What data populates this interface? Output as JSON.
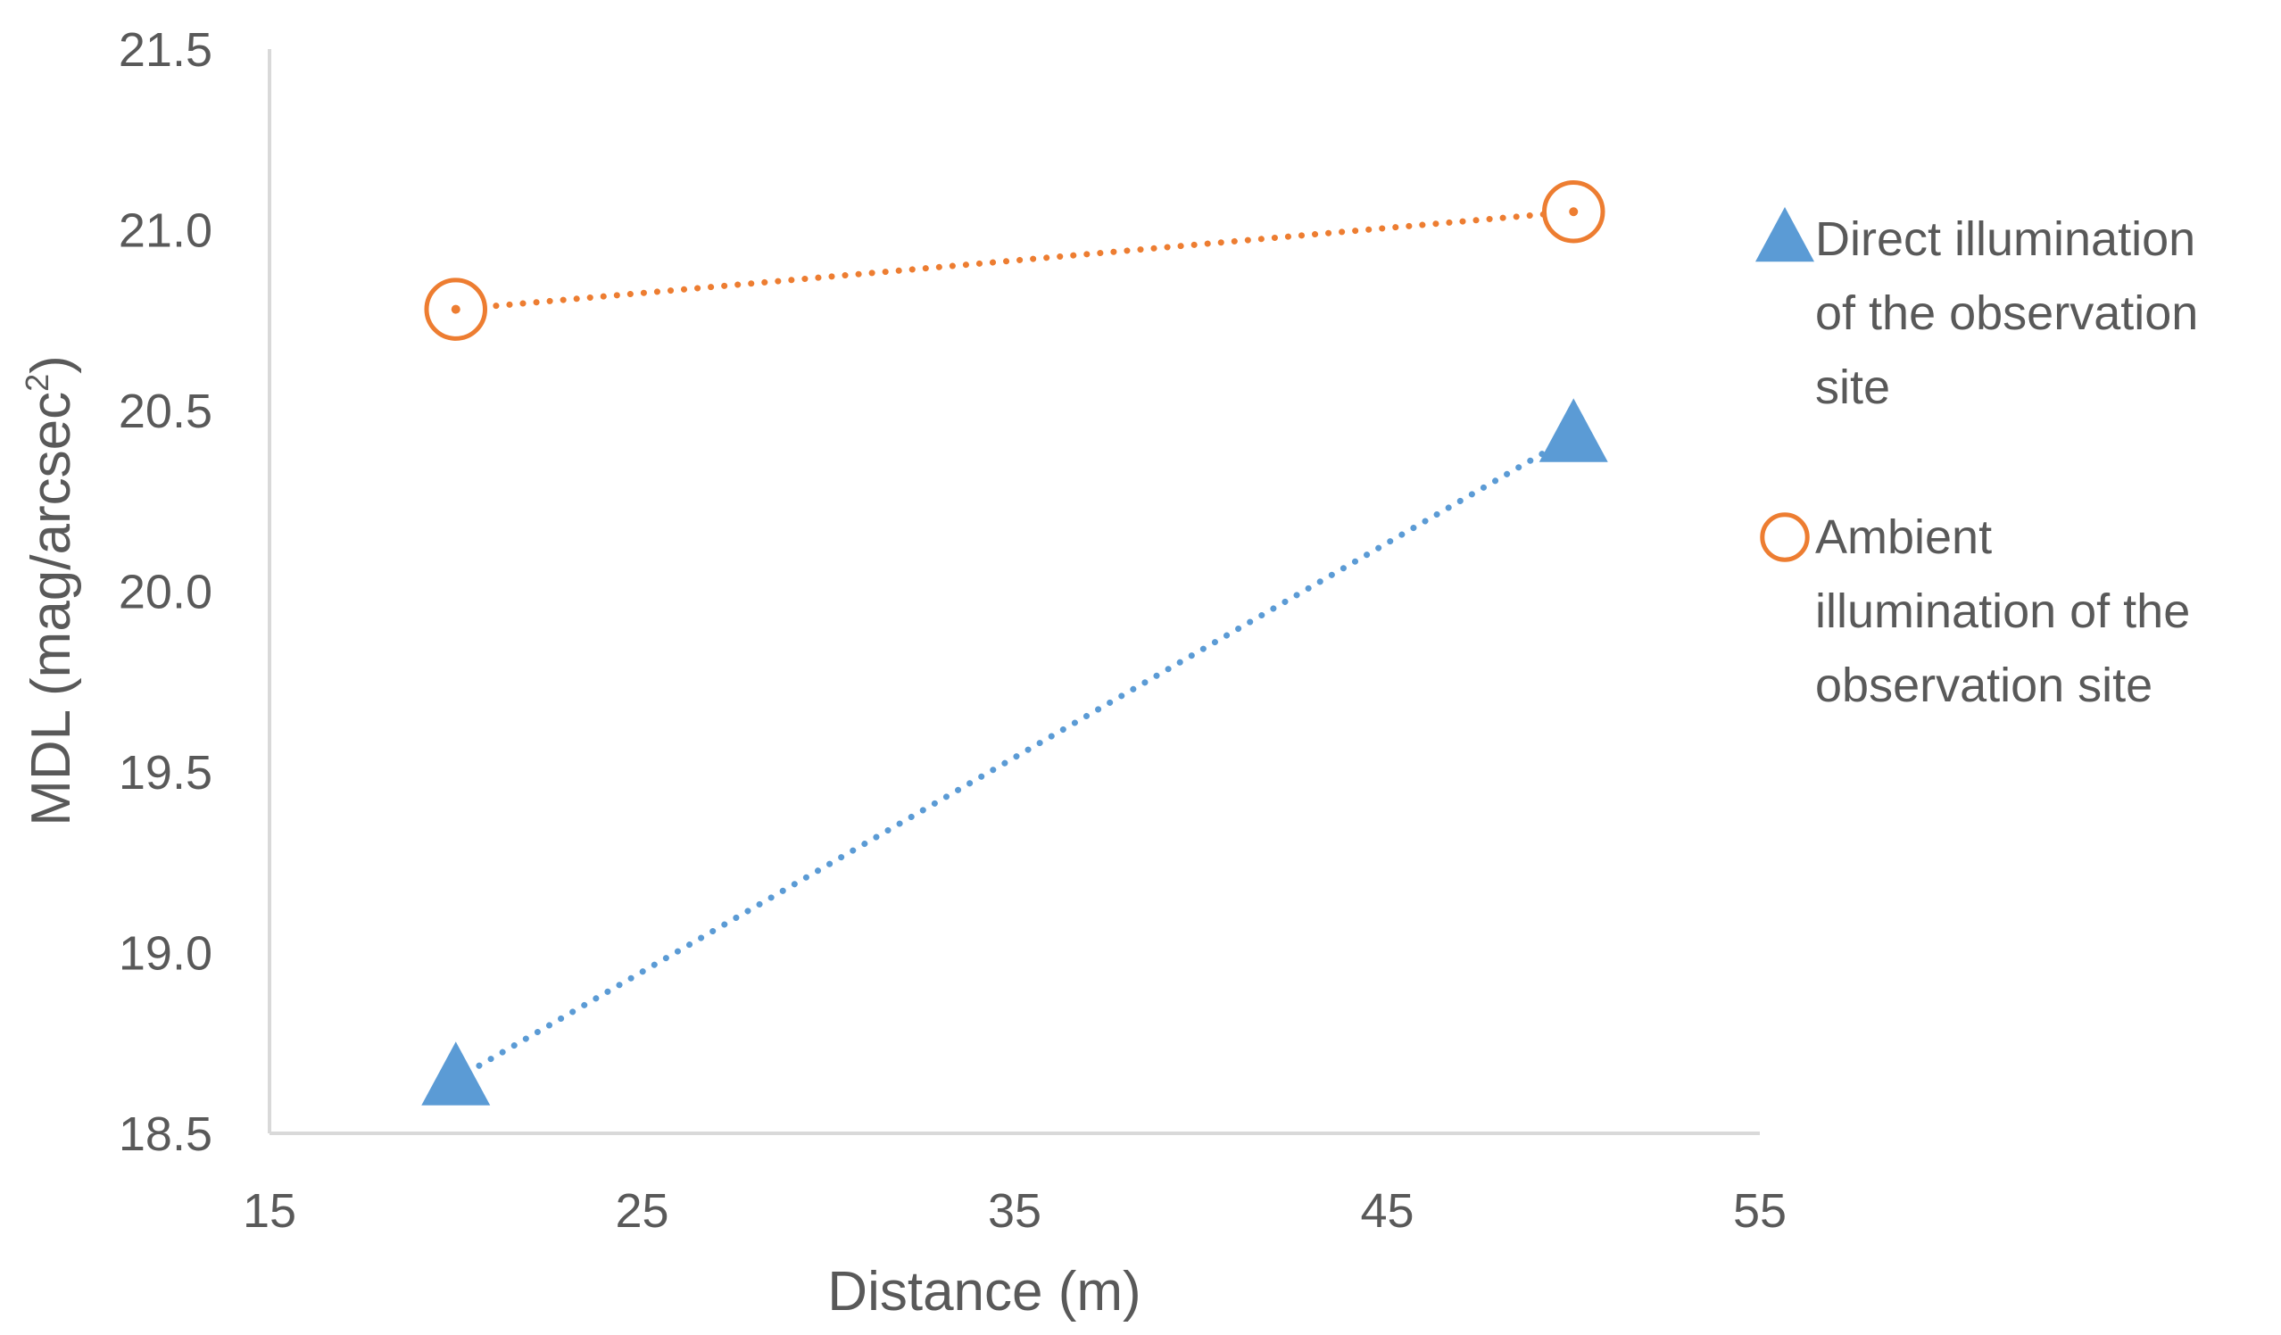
{
  "chart_data": {
    "type": "scatter",
    "title": "",
    "xlabel": "Distance (m)",
    "ylabel_main": "MDL (mag/arcsec",
    "ylabel_sup": "2",
    "ylabel_close": ")",
    "xlim": [
      15,
      55
    ],
    "ylim": [
      18.5,
      21.5
    ],
    "x_ticks": [
      "15",
      "25",
      "35",
      "45",
      "55"
    ],
    "y_ticks": [
      "18.5",
      "19.0",
      "19.5",
      "20.0",
      "20.5",
      "21.0",
      "21.5"
    ],
    "legend_position": "right",
    "series": [
      {
        "name_lines": [
          "Direct illumination",
          "of the observation",
          "site"
        ],
        "marker": "triangle-filled",
        "color": "#5B9BD5",
        "line_style": "dotted",
        "points": [
          {
            "x": 20,
            "y": 18.65
          },
          {
            "x": 50,
            "y": 20.43
          }
        ]
      },
      {
        "name_lines": [
          "Ambient",
          "illumination of the",
          "observation site"
        ],
        "marker": "circle-open",
        "color": "#ED7D31",
        "line_style": "dotted",
        "points": [
          {
            "x": 20,
            "y": 20.78
          },
          {
            "x": 50,
            "y": 21.05
          }
        ]
      }
    ],
    "axis_color": "#D9D9D9",
    "text_color": "#595959"
  }
}
